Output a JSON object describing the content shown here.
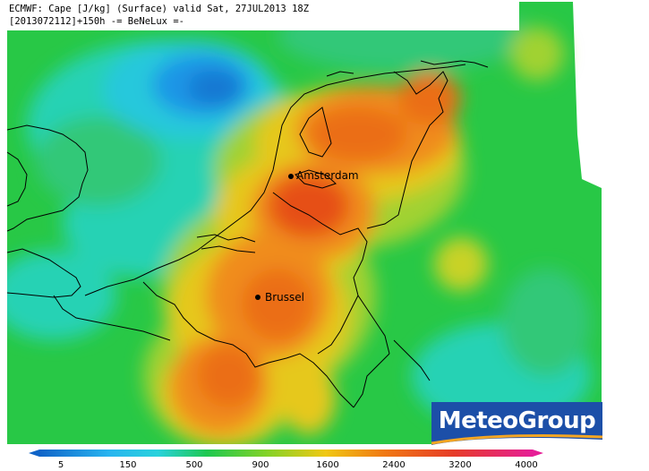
{
  "title": {
    "line1": "ECMWF: Cape [J/kg] (Surface) valid Sat, 27JUL2013 18Z",
    "line2": "[2013072112]+150h -= BeNeLux =-"
  },
  "cities": [
    {
      "name": "Amsterdam"
    },
    {
      "name": "Brussel"
    }
  ],
  "logo": {
    "text": "MeteoGroup",
    "brand_color": "#1c4fa8",
    "swoosh_color": "#f5a623"
  },
  "colorbar": {
    "tick_labels": [
      "5",
      "150",
      "500",
      "900",
      "1600",
      "2400",
      "3200",
      "4000"
    ],
    "colors": [
      "#1064c8",
      "#1e8ce6",
      "#28b4f0",
      "#28d2dc",
      "#1ed296",
      "#1ec850",
      "#3cc83c",
      "#82d228",
      "#c8d228",
      "#f0c814",
      "#f5a014",
      "#f07814",
      "#eb5a14",
      "#e63c28",
      "#e6285a",
      "#e61e96"
    ]
  },
  "map": {
    "field": "CAPE",
    "colors": {
      "background_green": "#28c846",
      "ocean_teal": "#28d2b4",
      "cyan": "#28c8dc",
      "blue_low": "#1478d2",
      "blue_mid": "#1e96e6",
      "yellow_green": "#a0d232",
      "yellow": "#e6c81e",
      "orange": "#f08c1e",
      "orange_dark": "#eb6e14",
      "red_orange": "#e65014",
      "border_line": "#000000"
    }
  }
}
